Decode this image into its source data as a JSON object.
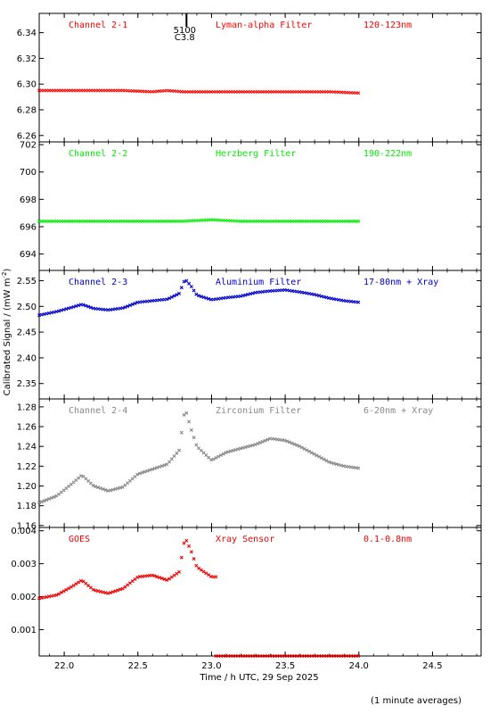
{
  "chart_data": {
    "type": "scatter",
    "xlabel": "Time / h UTC, 29 Sep 2025",
    "ylabel": "Calibrated Signal / (mW m",
    "ylabel_sup": "-2",
    "ylabel_end": ")",
    "xlim": [
      21.83,
      24.83
    ],
    "xticks": [
      "22.0",
      "22.5",
      "23.0",
      "23.5",
      "24.0",
      "24.5"
    ],
    "xtick_values": [
      22.0,
      22.5,
      23.0,
      23.5,
      24.0,
      24.5
    ],
    "footnote": "(1 minute averages)",
    "flare_marker": {
      "x": 22.83,
      "label_top": "5100",
      "label_bottom": "C3.8"
    },
    "panels": [
      {
        "channel": "Channel 2-1",
        "filter": "Lyman-alpha Filter",
        "band": "120-123nm",
        "color": "#ff0000",
        "ylim": [
          6.255,
          6.355
        ],
        "yticks": [
          "6.26",
          "6.28",
          "6.30",
          "6.32",
          "6.34"
        ],
        "ytick_values": [
          6.26,
          6.28,
          6.3,
          6.32,
          6.34
        ],
        "x": [
          21.83,
          22.0,
          22.2,
          22.4,
          22.6,
          22.7,
          22.8,
          23.0,
          23.2,
          23.4,
          23.6,
          23.8,
          24.0
        ],
        "y": [
          6.295,
          6.295,
          6.295,
          6.295,
          6.294,
          6.295,
          6.294,
          6.294,
          6.294,
          6.294,
          6.294,
          6.294,
          6.293
        ]
      },
      {
        "channel": "Channel 2-2",
        "filter": "Herzberg Filter",
        "band": "190-222nm",
        "color": "#00ee00",
        "ylim": [
          692.8,
          702.2
        ],
        "yticks": [
          "694",
          "696",
          "698",
          "700",
          "702"
        ],
        "ytick_values": [
          694,
          696,
          698,
          700,
          702
        ],
        "x": [
          21.83,
          22.0,
          22.2,
          22.4,
          22.6,
          22.8,
          23.0,
          23.2,
          23.4,
          23.6,
          23.8,
          24.0
        ],
        "y": [
          696.4,
          696.4,
          696.4,
          696.4,
          696.4,
          696.4,
          696.5,
          696.4,
          696.4,
          696.4,
          696.4,
          696.4
        ]
      },
      {
        "channel": "Channel 2-3",
        "filter": "Aluminium Filter",
        "band": "17-80nm + Xray",
        "color": "#0000cc",
        "ylim": [
          2.32,
          2.57
        ],
        "yticks": [
          "2.35",
          "2.40",
          "2.45",
          "2.50",
          "2.55"
        ],
        "ytick_values": [
          2.35,
          2.4,
          2.45,
          2.5,
          2.55
        ],
        "x": [
          21.83,
          21.95,
          22.05,
          22.12,
          22.2,
          22.3,
          22.4,
          22.5,
          22.6,
          22.7,
          22.78,
          22.82,
          22.86,
          22.9,
          23.0,
          23.1,
          23.2,
          23.3,
          23.4,
          23.5,
          23.6,
          23.7,
          23.8,
          23.9,
          24.0
        ],
        "y": [
          2.483,
          2.49,
          2.498,
          2.504,
          2.496,
          2.493,
          2.497,
          2.508,
          2.511,
          2.514,
          2.525,
          2.553,
          2.54,
          2.522,
          2.513,
          2.517,
          2.52,
          2.527,
          2.53,
          2.532,
          2.528,
          2.523,
          2.516,
          2.511,
          2.508
        ]
      },
      {
        "channel": "Channel 2-4",
        "filter": "Zirconium Filter",
        "band": "6-20nm + Xray",
        "color": "#888888",
        "ylim": [
          1.158,
          1.288
        ],
        "yticks": [
          "1.16",
          "1.18",
          "1.20",
          "1.22",
          "1.24",
          "1.26",
          "1.28"
        ],
        "ytick_values": [
          1.16,
          1.18,
          1.2,
          1.22,
          1.24,
          1.26,
          1.28
        ],
        "x": [
          21.83,
          21.95,
          22.05,
          22.12,
          22.2,
          22.3,
          22.4,
          22.5,
          22.6,
          22.7,
          22.78,
          22.82,
          22.86,
          22.9,
          23.0,
          23.1,
          23.2,
          23.3,
          23.4,
          23.5,
          23.6,
          23.7,
          23.8,
          23.9,
          24.0
        ],
        "y": [
          1.183,
          1.19,
          1.202,
          1.211,
          1.2,
          1.195,
          1.199,
          1.212,
          1.217,
          1.222,
          1.236,
          1.279,
          1.258,
          1.24,
          1.226,
          1.234,
          1.238,
          1.242,
          1.248,
          1.246,
          1.24,
          1.232,
          1.224,
          1.22,
          1.218
        ]
      },
      {
        "channel": "GOES",
        "filter": "Xray Sensor",
        "band": "0.1-0.8nm",
        "color": "#ee0000",
        "ylim": [
          0.0002,
          0.0041
        ],
        "yticks": [
          "0.001",
          "0.002",
          "0.003",
          "0.004"
        ],
        "ytick_values": [
          0.001,
          0.002,
          0.003,
          0.004
        ],
        "x": [
          21.83,
          21.95,
          22.05,
          22.12,
          22.2,
          22.3,
          22.4,
          22.5,
          22.6,
          22.7,
          22.78,
          22.82,
          22.86,
          22.9,
          23.0,
          23.03
        ],
        "y": [
          0.00195,
          0.00205,
          0.0023,
          0.0025,
          0.0022,
          0.0021,
          0.00225,
          0.0026,
          0.00265,
          0.0025,
          0.00275,
          0.0038,
          0.0034,
          0.0029,
          0.0026,
          0.0026
        ],
        "x2": [
          23.03,
          23.5,
          24.0
        ],
        "y2": [
          0.0002,
          0.0002,
          0.0002
        ]
      }
    ]
  }
}
